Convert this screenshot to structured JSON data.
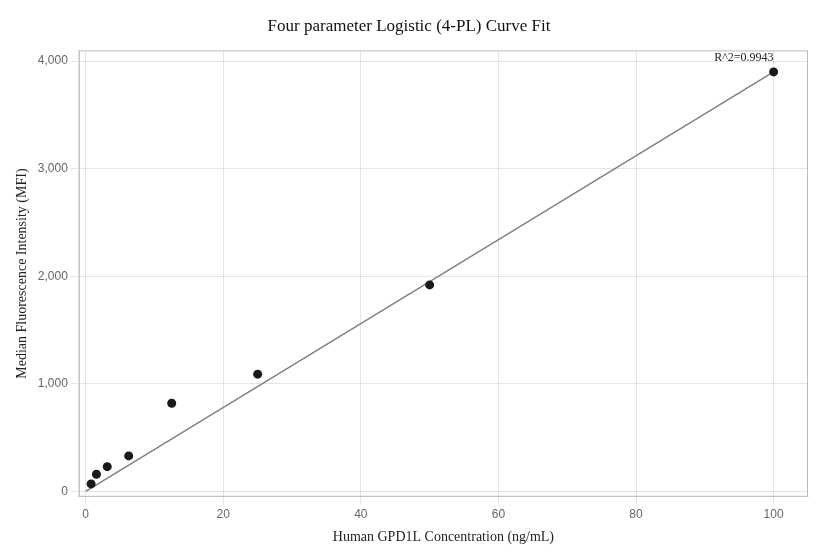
{
  "chart_data": {
    "type": "scatter",
    "title": "Four parameter Logistic (4-PL) Curve Fit",
    "x_label": "Human GPD1L Concentration (ng/mL)",
    "y_label": "Median Fluorescence Intensity (MFI)",
    "series": [
      {
        "type": "line",
        "color": "#808080",
        "x": [
          0,
          100
        ],
        "values": [
          0,
          3900
        ]
      },
      {
        "type": "scatter",
        "color": "#1a1a1a",
        "x": [
          0.78,
          1.56,
          3.13,
          6.25,
          12.5,
          25.0,
          50.0,
          100.0
        ],
        "values": [
          70,
          160,
          230,
          330,
          820,
          1090,
          1920,
          3900
        ]
      }
    ],
    "annotation": "R^2=0.9943",
    "xlim": [
      -1,
      105
    ],
    "ylim": [
      -50,
      4100
    ],
    "xticks": [
      0,
      20,
      40,
      60,
      80,
      100
    ],
    "yticks": [
      0,
      {
        "value": 1000,
        "label": "1,000"
      },
      {
        "value": 2000,
        "label": "2,000"
      },
      {
        "value": 3000,
        "label": "3,000"
      },
      {
        "value": 4000,
        "label": "4,000"
      }
    ],
    "grid": true
  }
}
